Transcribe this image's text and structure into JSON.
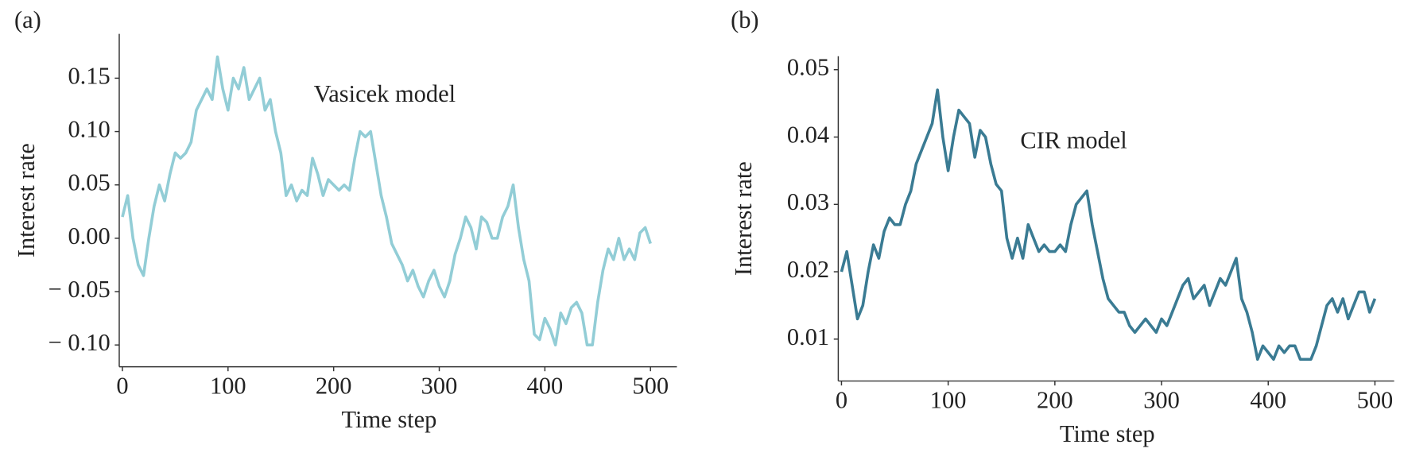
{
  "chart_data": [
    {
      "type": "line",
      "panel_label": "(a)",
      "annotation": "Vasicek model",
      "xlabel": "Time step",
      "ylabel": "Interest rate",
      "xlim": [
        -3,
        525
      ],
      "ylim": [
        -0.1204,
        0.1915
      ],
      "xticks": [
        0,
        100,
        200,
        300,
        400,
        500
      ],
      "yticks": [
        {
          "value": -0.1,
          "label": "− 0.10"
        },
        {
          "value": -0.05,
          "label": "− 0.05"
        },
        {
          "value": 0,
          "label": "0.00"
        },
        0.05,
        {
          "value": 0.1,
          "label": "0.10"
        },
        0.15
      ],
      "x": [
        0,
        5,
        10,
        15,
        20,
        25,
        30,
        35,
        40,
        45,
        50,
        55,
        60,
        65,
        70,
        75,
        80,
        85,
        90,
        95,
        100,
        105,
        110,
        115,
        120,
        125,
        130,
        135,
        140,
        145,
        150,
        155,
        160,
        165,
        170,
        175,
        180,
        185,
        190,
        195,
        200,
        205,
        210,
        215,
        220,
        225,
        230,
        235,
        240,
        245,
        250,
        255,
        260,
        265,
        270,
        275,
        280,
        285,
        290,
        295,
        300,
        305,
        310,
        315,
        320,
        325,
        330,
        335,
        340,
        345,
        350,
        355,
        360,
        365,
        370,
        375,
        380,
        385,
        390,
        395,
        400,
        405,
        410,
        415,
        420,
        425,
        430,
        435,
        440,
        445,
        450,
        455,
        460,
        465,
        470,
        475,
        480,
        485,
        490,
        495,
        500
      ],
      "series": [
        {
          "color": "#92cdd6",
          "values": [
            0.02,
            0.04,
            0.0,
            -0.025,
            -0.035,
            0.0,
            0.03,
            0.05,
            0.035,
            0.06,
            0.08,
            0.075,
            0.08,
            0.09,
            0.12,
            0.13,
            0.14,
            0.13,
            0.17,
            0.14,
            0.12,
            0.15,
            0.14,
            0.16,
            0.13,
            0.14,
            0.15,
            0.12,
            0.13,
            0.1,
            0.08,
            0.04,
            0.05,
            0.035,
            0.045,
            0.04,
            0.075,
            0.06,
            0.04,
            0.055,
            0.05,
            0.045,
            0.05,
            0.045,
            0.075,
            0.1,
            0.095,
            0.1,
            0.07,
            0.04,
            0.02,
            -0.005,
            -0.015,
            -0.025,
            -0.04,
            -0.03,
            -0.045,
            -0.055,
            -0.04,
            -0.03,
            -0.045,
            -0.055,
            -0.04,
            -0.015,
            0.0,
            0.02,
            0.01,
            -0.01,
            0.02,
            0.015,
            0.0,
            0.0,
            0.02,
            0.03,
            0.05,
            0.01,
            -0.02,
            -0.04,
            -0.09,
            -0.095,
            -0.075,
            -0.085,
            -0.1,
            -0.07,
            -0.08,
            -0.065,
            -0.06,
            -0.07,
            -0.1,
            -0.1,
            -0.06,
            -0.03,
            -0.01,
            -0.02,
            0.0,
            -0.02,
            -0.01,
            -0.02,
            0.005,
            0.01,
            -0.005
          ]
        }
      ]
    },
    {
      "type": "line",
      "panel_label": "(b)",
      "annotation": "CIR model",
      "xlabel": "Time step",
      "ylabel": "Interest rate",
      "xlim": [
        -3,
        518
      ],
      "ylim": [
        0.00378,
        0.052
      ],
      "xticks": [
        0,
        100,
        200,
        300,
        400,
        500
      ],
      "yticks": [
        0.01,
        0.02,
        0.03,
        0.04,
        0.05
      ],
      "x": [
        0,
        5,
        10,
        15,
        20,
        25,
        30,
        35,
        40,
        45,
        50,
        55,
        60,
        65,
        70,
        75,
        80,
        85,
        90,
        95,
        100,
        105,
        110,
        115,
        120,
        125,
        130,
        135,
        140,
        145,
        150,
        155,
        160,
        165,
        170,
        175,
        180,
        185,
        190,
        195,
        200,
        205,
        210,
        215,
        220,
        225,
        230,
        235,
        240,
        245,
        250,
        255,
        260,
        265,
        270,
        275,
        280,
        285,
        290,
        295,
        300,
        305,
        310,
        315,
        320,
        325,
        330,
        335,
        340,
        345,
        350,
        355,
        360,
        365,
        370,
        375,
        380,
        385,
        390,
        395,
        400,
        405,
        410,
        415,
        420,
        425,
        430,
        435,
        440,
        445,
        450,
        455,
        460,
        465,
        470,
        475,
        480,
        485,
        490,
        495,
        500
      ],
      "series": [
        {
          "color": "#3a7b93",
          "values": [
            0.02,
            0.023,
            0.018,
            0.013,
            0.015,
            0.02,
            0.024,
            0.022,
            0.026,
            0.028,
            0.027,
            0.027,
            0.03,
            0.032,
            0.036,
            0.038,
            0.04,
            0.042,
            0.047,
            0.04,
            0.035,
            0.04,
            0.044,
            0.043,
            0.042,
            0.037,
            0.041,
            0.04,
            0.036,
            0.033,
            0.032,
            0.025,
            0.022,
            0.025,
            0.022,
            0.027,
            0.025,
            0.023,
            0.024,
            0.023,
            0.023,
            0.024,
            0.023,
            0.027,
            0.03,
            0.031,
            0.032,
            0.027,
            0.023,
            0.019,
            0.016,
            0.015,
            0.014,
            0.014,
            0.012,
            0.011,
            0.012,
            0.013,
            0.012,
            0.011,
            0.013,
            0.012,
            0.014,
            0.016,
            0.018,
            0.019,
            0.016,
            0.017,
            0.018,
            0.015,
            0.017,
            0.019,
            0.018,
            0.02,
            0.022,
            0.016,
            0.014,
            0.011,
            0.007,
            0.009,
            0.008,
            0.007,
            0.009,
            0.008,
            0.009,
            0.009,
            0.007,
            0.007,
            0.007,
            0.009,
            0.012,
            0.015,
            0.016,
            0.014,
            0.016,
            0.013,
            0.015,
            0.017,
            0.017,
            0.014,
            0.016
          ]
        }
      ]
    }
  ]
}
